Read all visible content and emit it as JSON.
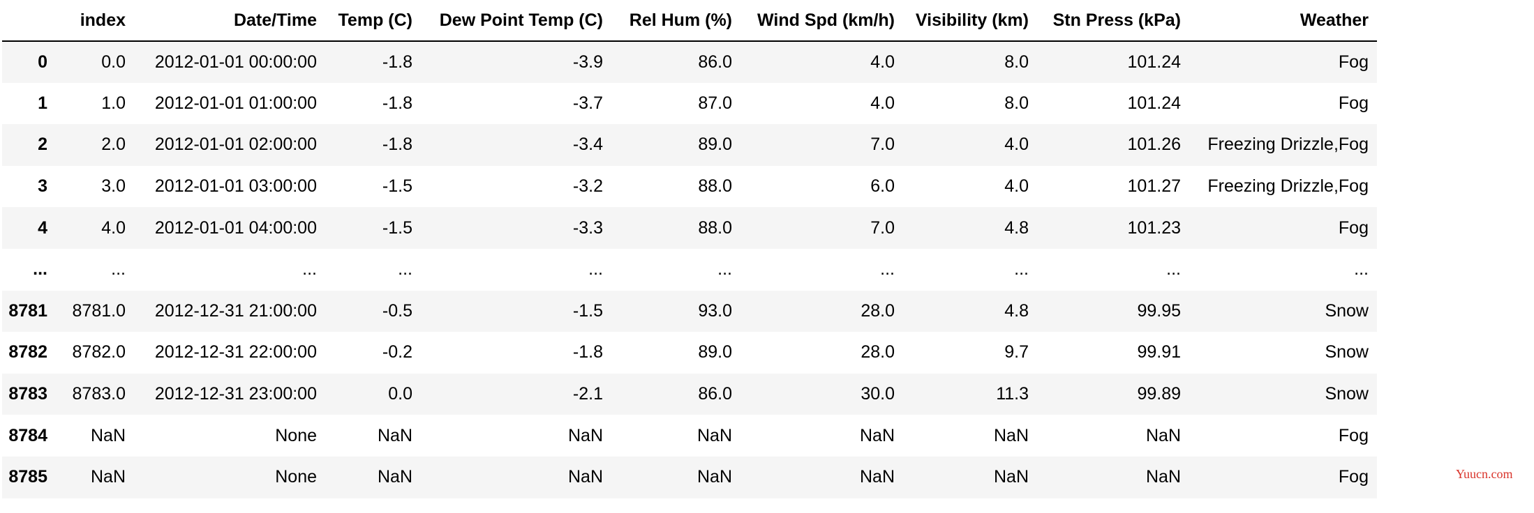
{
  "table": {
    "columns": [
      "index",
      "Date/Time",
      "Temp (C)",
      "Dew Point Temp (C)",
      "Rel Hum (%)",
      "Wind Spd (km/h)",
      "Visibility (km)",
      "Stn Press (kPa)",
      "Weather"
    ],
    "index": [
      "0",
      "1",
      "2",
      "3",
      "4",
      "...",
      "8781",
      "8782",
      "8783",
      "8784",
      "8785"
    ],
    "rows": [
      [
        "0.0",
        "2012-01-01 00:00:00",
        "-1.8",
        "-3.9",
        "86.0",
        "4.0",
        "8.0",
        "101.24",
        "Fog"
      ],
      [
        "1.0",
        "2012-01-01 01:00:00",
        "-1.8",
        "-3.7",
        "87.0",
        "4.0",
        "8.0",
        "101.24",
        "Fog"
      ],
      [
        "2.0",
        "2012-01-01 02:00:00",
        "-1.8",
        "-3.4",
        "89.0",
        "7.0",
        "4.0",
        "101.26",
        "Freezing Drizzle,Fog"
      ],
      [
        "3.0",
        "2012-01-01 03:00:00",
        "-1.5",
        "-3.2",
        "88.0",
        "6.0",
        "4.0",
        "101.27",
        "Freezing Drizzle,Fog"
      ],
      [
        "4.0",
        "2012-01-01 04:00:00",
        "-1.5",
        "-3.3",
        "88.0",
        "7.0",
        "4.8",
        "101.23",
        "Fog"
      ],
      [
        "...",
        "...",
        "...",
        "...",
        "...",
        "...",
        "...",
        "...",
        "..."
      ],
      [
        "8781.0",
        "2012-12-31 21:00:00",
        "-0.5",
        "-1.5",
        "93.0",
        "28.0",
        "4.8",
        "99.95",
        "Snow"
      ],
      [
        "8782.0",
        "2012-12-31 22:00:00",
        "-0.2",
        "-1.8",
        "89.0",
        "28.0",
        "9.7",
        "99.91",
        "Snow"
      ],
      [
        "8783.0",
        "2012-12-31 23:00:00",
        "0.0",
        "-2.1",
        "86.0",
        "30.0",
        "11.3",
        "99.89",
        "Snow"
      ],
      [
        "NaN",
        "None",
        "NaN",
        "NaN",
        "NaN",
        "NaN",
        "NaN",
        "NaN",
        "Fog"
      ],
      [
        "NaN",
        "None",
        "NaN",
        "NaN",
        "NaN",
        "NaN",
        "NaN",
        "NaN",
        "Fog"
      ]
    ]
  },
  "watermark": "Yuucn.com"
}
